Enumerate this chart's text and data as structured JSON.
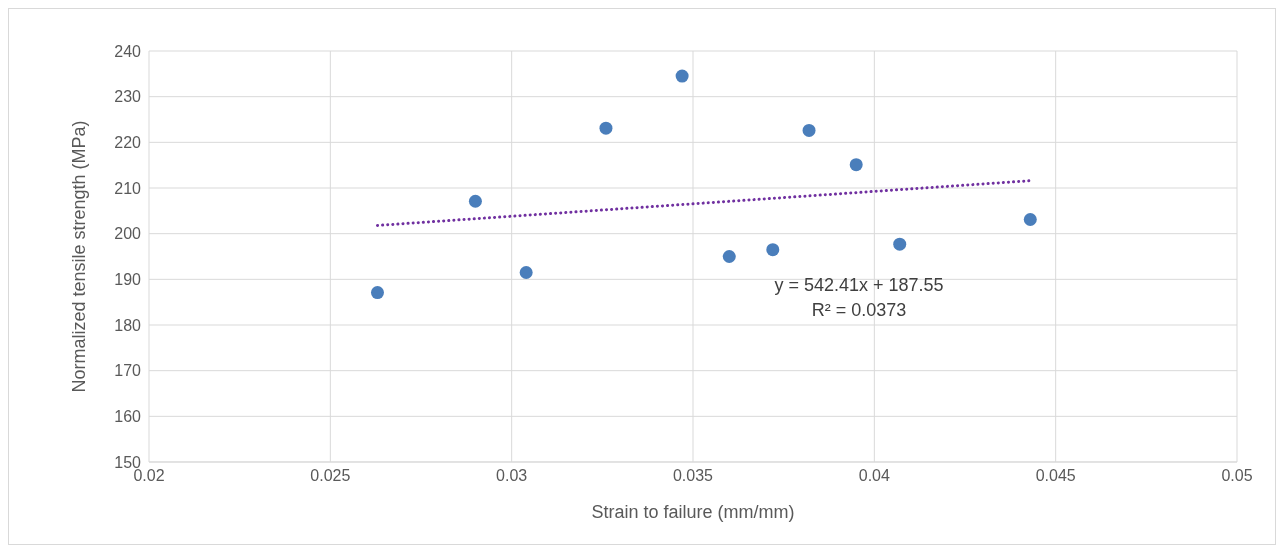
{
  "chart_data": {
    "type": "scatter",
    "xlabel": "Strain to failure (mm/mm)",
    "ylabel": "Normalized tensile strength (MPa)",
    "xlim": [
      0.02,
      0.05
    ],
    "xticks": [
      0.02,
      0.025,
      0.03,
      0.035,
      0.04,
      0.045,
      0.05
    ],
    "ylim": [
      150,
      240
    ],
    "yticks": [
      150,
      160,
      170,
      180,
      190,
      200,
      210,
      220,
      230,
      240
    ],
    "grid": true,
    "legend": false,
    "marker": "circle",
    "series": [
      {
        "color": "#4a7ebb",
        "x": [
          0.0263,
          0.029,
          0.0304,
          0.0326,
          0.0347,
          0.036,
          0.0372,
          0.0382,
          0.0395,
          0.0407,
          0.0443
        ],
        "values": [
          187.1,
          207.1,
          191.5,
          223.1,
          234.5,
          195.0,
          196.5,
          222.6,
          215.1,
          197.7,
          203.1
        ]
      },
      {
        "type": "line",
        "color": "#7030a0",
        "x": [
          0.0263,
          0.0443
        ],
        "values": [
          201.8,
          211.6
        ],
        "line_style": "dotted",
        "marker": "none"
      }
    ],
    "annotations": [
      "y = 542.41x + 187.55",
      "R² = 0.0373"
    ]
  }
}
